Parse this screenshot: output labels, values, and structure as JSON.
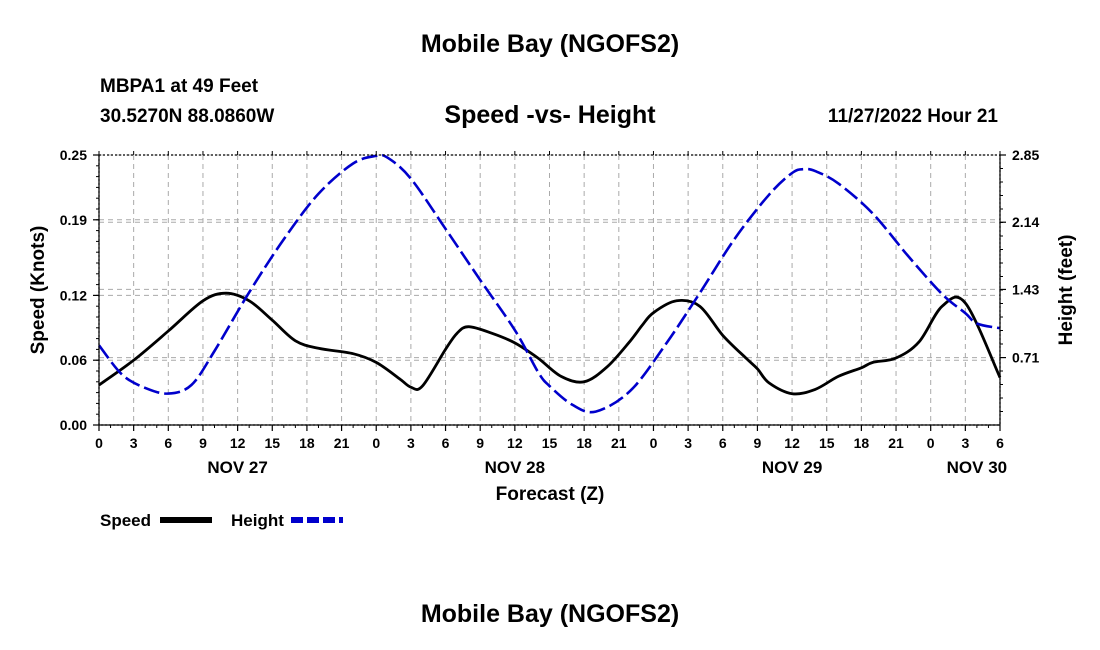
{
  "header": {
    "title": "Mobile Bay (NGOFS2)",
    "station": "MBPA1 at 49 Feet",
    "coords": "30.5270N  88.0860W",
    "subtitle": "Speed -vs- Height",
    "datetime": "11/27/2022 Hour 21"
  },
  "footer": {
    "title": "Mobile Bay (NGOFS2)"
  },
  "colors": {
    "speed": "#000000",
    "height": "#0000cc",
    "grid": "#aaaaaa"
  },
  "chart_data": {
    "type": "line",
    "title": "Speed -vs- Height",
    "xlabel": "Forecast (Z)",
    "ylabel": "Speed (Knots)",
    "y2label": "Height (feet)",
    "x_unit": "hours since Nov 27 00Z",
    "xlim": [
      0,
      78
    ],
    "ylim": [
      0,
      0.25
    ],
    "y2lim": [
      -0.002,
      2.85
    ],
    "x_ticks": [
      0,
      3,
      6,
      9,
      12,
      15,
      18,
      21,
      24,
      27,
      30,
      33,
      36,
      39,
      42,
      45,
      48,
      51,
      54,
      57,
      60,
      63,
      66,
      69,
      72,
      75,
      78
    ],
    "x_tick_labels": [
      "0",
      "3",
      "6",
      "9",
      "12",
      "15",
      "18",
      "21",
      "0",
      "3",
      "6",
      "9",
      "12",
      "15",
      "18",
      "21",
      "0",
      "3",
      "6",
      "9",
      "12",
      "15",
      "18",
      "21",
      "0",
      "3",
      "6"
    ],
    "date_labels": [
      {
        "x": 12,
        "label": "NOV 27"
      },
      {
        "x": 36,
        "label": "NOV 28"
      },
      {
        "x": 60,
        "label": "NOV 29"
      },
      {
        "x": 76,
        "label": "NOV 30"
      }
    ],
    "y_ticks": [
      0.0,
      0.06,
      0.12,
      0.19,
      0.25
    ],
    "y_tick_labels": [
      "0.00",
      "0.06",
      "0.12",
      "0.19",
      "0.25"
    ],
    "y2_ticks": [
      0.71,
      1.43,
      2.14,
      2.85
    ],
    "y2_tick_labels": [
      "0.71",
      "1.43",
      "2.14",
      "2.85"
    ],
    "legend_position": "bottom-left",
    "series": [
      {
        "name": "Speed",
        "axis": "left",
        "style": "solid",
        "x": [
          0,
          3,
          6,
          9,
          11,
          13,
          15,
          17,
          19,
          22,
          24,
          26,
          27,
          28,
          30,
          31,
          32,
          34,
          36,
          38,
          40,
          42,
          44,
          46,
          47,
          48,
          50,
          52,
          54,
          56,
          57,
          58,
          60,
          62,
          64,
          66,
          67,
          69,
          71,
          73,
          75,
          78
        ],
        "values": [
          0.037,
          0.06,
          0.087,
          0.115,
          0.122,
          0.115,
          0.097,
          0.078,
          0.071,
          0.066,
          0.058,
          0.043,
          0.035,
          0.036,
          0.07,
          0.085,
          0.091,
          0.085,
          0.076,
          0.062,
          0.045,
          0.04,
          0.054,
          0.078,
          0.092,
          0.104,
          0.115,
          0.11,
          0.083,
          0.062,
          0.052,
          0.039,
          0.029,
          0.033,
          0.045,
          0.053,
          0.058,
          0.062,
          0.077,
          0.11,
          0.113,
          0.044
        ]
      },
      {
        "name": "Height",
        "axis": "right",
        "style": "dashed",
        "x": [
          0,
          2,
          4,
          6,
          8,
          10,
          13,
          16,
          19,
          22,
          24,
          25,
          27,
          30,
          33,
          36,
          38,
          39,
          41,
          43,
          46,
          49,
          52,
          55,
          58,
          60,
          61,
          62,
          64,
          67,
          70,
          73,
          75,
          76,
          78
        ],
        "values": [
          0.84,
          0.53,
          0.39,
          0.33,
          0.42,
          0.78,
          1.4,
          1.96,
          2.44,
          2.76,
          2.84,
          2.82,
          2.6,
          2.07,
          1.53,
          1.0,
          0.56,
          0.41,
          0.21,
          0.14,
          0.36,
          0.84,
          1.39,
          1.96,
          2.43,
          2.66,
          2.7,
          2.68,
          2.55,
          2.23,
          1.79,
          1.38,
          1.18,
          1.07,
          1.02
        ]
      }
    ]
  }
}
